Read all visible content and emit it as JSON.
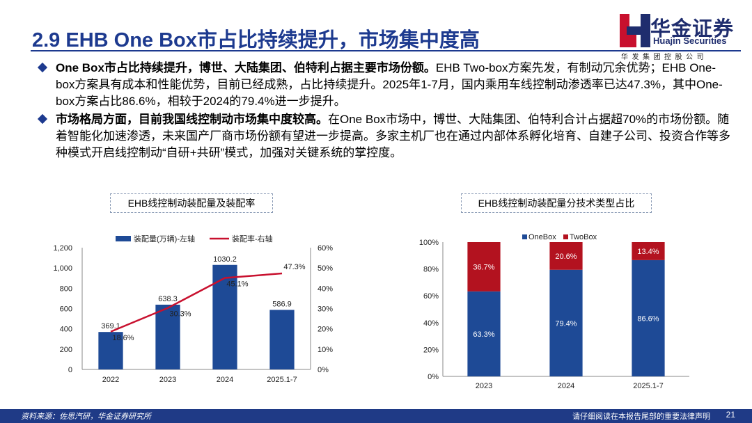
{
  "slide": {
    "title": "2.9 EHB One Box市占比持续提升，市场集中度高",
    "logo_name": "华金证券",
    "logo_en": "Huajin Securities",
    "logo_cn": "华发集团控股公司",
    "bullets": [
      {
        "bold": "One Box市占比持续提升，博世、大陆集团、伯特利占据主要市场份额。",
        "text": "EHB Two-box方案先发，有制动冗余优势；EHB One-box方案具有成本和性能优势，目前已经成熟，占比持续提升。2025年1-7月，国内乘用车线控制动渗透率已达47.3%，其中One-box方案占比86.6%，相较于2024的79.4%进一步提升。"
      },
      {
        "bold": "市场格局方面，目前我国线控制动市场集中度较高。",
        "text": "在One Box市场中，博世、大陆集团、伯特利合计占据超70%的市场份额。随着智能化加速渗透，未来国产厂商市场份额有望进一步提高。多家主机厂也在通过内部体系孵化培育、自建子公司、投资合作等多种模式开启线控制动“自研+共研”模式，加强对关键系统的掌控度。"
      }
    ],
    "footer_source": "资料来源：佐思汽研，华金证券研究所",
    "footer_disclaimer": "请仔细阅读在本报告尾部的重要法律声明",
    "page_number": "21",
    "colors": {
      "brand": "#1d3a8f",
      "bar_blue": "#1e4a96",
      "line_red": "#c8102e",
      "twobox_red": "#b3121f",
      "footer": "#1f3a86"
    }
  },
  "chart_data": [
    {
      "type": "bar",
      "title": "EHB线控制动装配量及装配率",
      "categories": [
        "2022",
        "2023",
        "2024",
        "2025.1-7"
      ],
      "series": [
        {
          "name": "装配量(万辆)-左轴",
          "type": "bar",
          "axis": "left",
          "values": [
            369.1,
            638.3,
            1030.2,
            586.9
          ],
          "labels": [
            "369.1",
            "638.3",
            "1030.2",
            "586.9"
          ]
        },
        {
          "name": "装配率-右轴",
          "type": "line",
          "axis": "right",
          "values": [
            18.6,
            30.3,
            45.1,
            47.3
          ],
          "labels": [
            "18.6%",
            "30.3%",
            "45.1%",
            "47.3%"
          ]
        }
      ],
      "ylim": [
        0,
        1200
      ],
      "y_ticks": [
        "0",
        "200",
        "400",
        "600",
        "800",
        "1,000",
        "1,200"
      ],
      "y2lim": [
        0,
        60
      ],
      "y2_ticks": [
        "0%",
        "10%",
        "20%",
        "30%",
        "40%",
        "50%",
        "60%"
      ],
      "legend": "top"
    },
    {
      "type": "bar",
      "stacked": true,
      "title": "EHB线控制动装配量分技术类型占比",
      "categories": [
        "2023",
        "2024",
        "2025.1-7"
      ],
      "series": [
        {
          "name": "OneBox",
          "values": [
            63.3,
            79.4,
            86.6
          ],
          "labels": [
            "63.3%",
            "79.4%",
            "86.6%"
          ]
        },
        {
          "name": "TwoBox",
          "values": [
            36.7,
            20.6,
            13.4
          ],
          "labels": [
            "36.7%",
            "20.6%",
            "13.4%"
          ]
        }
      ],
      "ylim": [
        0,
        100
      ],
      "y_ticks": [
        "0%",
        "20%",
        "40%",
        "60%",
        "80%",
        "100%"
      ],
      "legend": "top"
    }
  ]
}
